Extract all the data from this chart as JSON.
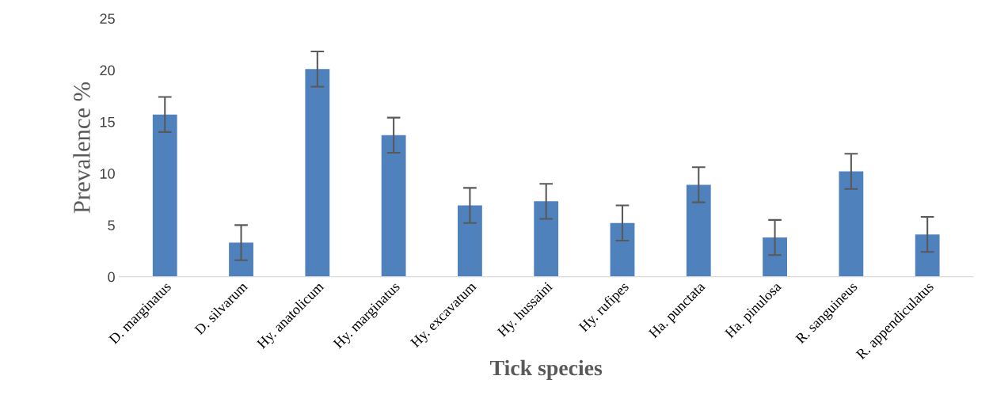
{
  "chart_data": {
    "type": "bar",
    "xlabel": "Tick species",
    "ylabel": "Prevalence %",
    "categories": [
      "D. marginatus",
      "D. silvarum",
      "Hy. anatolicum",
      "Hy. marginatus",
      "Hy. excavatum",
      "Hy. hussaini",
      "Hy. rufipes",
      "Ha. punctata",
      "Ha. pinulosa",
      "R. sanguineus",
      "R. appendiculatus"
    ],
    "values": [
      15.7,
      3.3,
      20.1,
      13.7,
      6.9,
      7.3,
      5.2,
      8.9,
      3.8,
      10.2,
      4.1
    ],
    "errors": [
      1.7,
      1.7,
      1.7,
      1.7,
      1.7,
      1.7,
      1.7,
      1.7,
      1.7,
      1.7,
      1.7
    ],
    "color": "#4f81bd",
    "ylim": [
      0,
      25
    ],
    "yticks": [
      0,
      5,
      10,
      15,
      20,
      25
    ],
    "grid": false,
    "legend": false
  }
}
